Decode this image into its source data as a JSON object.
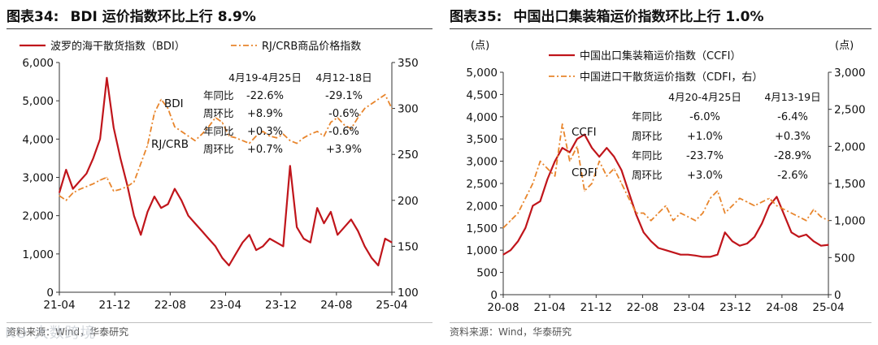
{
  "colors": {
    "red": "#c0151b",
    "orange": "#e8852c",
    "axis": "#333333",
    "text": "#111111"
  },
  "chart_data": [
    {
      "type": "line",
      "title_prefix": "图表34:",
      "title": "BDI 运价指数环比上行 8.9%",
      "source": "资料来源：Wind，华泰研究",
      "watermark": "K⊙ 大数跨境",
      "x_ticks": [
        "21-04",
        "21-12",
        "22-08",
        "23-04",
        "23-12",
        "24-08",
        "25-04"
      ],
      "y_left": {
        "ticks": [
          "6,000",
          "5,000",
          "4,000",
          "3,000",
          "2,000",
          "1,000",
          "0"
        ],
        "lim": [
          0,
          6000
        ]
      },
      "y_right": {
        "ticks": [
          "350",
          "300",
          "250",
          "200",
          "150",
          "100"
        ],
        "lim": [
          100,
          350
        ]
      },
      "legend": [
        {
          "label": "波罗的海干散货指数（BDI）",
          "style": "solid"
        },
        {
          "label": "RJ/CRB商品价格指数",
          "style": "dashdot"
        }
      ],
      "annotations": {
        "bdi_label": "BDI",
        "crb_label": "RJ/CRB",
        "col1": "4月19-4月25日",
        "col2": "4月12-18日",
        "rows": [
          {
            "label": "年同比",
            "v1": "-22.6%",
            "v2": "-29.1%"
          },
          {
            "label": "周环比",
            "v1": "+8.9%",
            "v2": "-0.6%"
          },
          {
            "label": "年同比",
            "v1": "+0.3%",
            "v2": "-0.6%"
          },
          {
            "label": "周环比",
            "v1": "+0.7%",
            "v2": "+3.9%"
          }
        ]
      },
      "series": [
        {
          "name": "波罗的海干散货指数（BDI）",
          "axis": "left",
          "x": [
            0,
            1,
            2,
            3,
            4,
            5,
            6,
            7,
            8,
            9,
            10,
            11,
            12,
            13,
            14,
            15,
            16,
            17,
            18,
            19,
            20,
            21,
            22,
            23,
            24,
            25,
            26,
            27,
            28,
            29,
            30,
            31,
            32,
            33,
            34,
            35,
            36,
            37,
            38,
            39,
            40,
            41,
            42,
            43,
            44,
            45,
            46,
            47,
            48,
            49
          ],
          "values": [
            2600,
            3200,
            2700,
            2900,
            3100,
            3500,
            4000,
            5600,
            4300,
            3500,
            2800,
            2000,
            1500,
            2100,
            2500,
            2200,
            2300,
            2700,
            2400,
            2000,
            1800,
            1600,
            1400,
            1200,
            900,
            700,
            1000,
            1300,
            1500,
            1100,
            1200,
            1400,
            1300,
            1200,
            3300,
            1700,
            1400,
            1300,
            2200,
            1800,
            2100,
            1500,
            1700,
            1900,
            1600,
            1200,
            900,
            700,
            1400,
            1300
          ]
        },
        {
          "name": "RJ/CRB商品价格指数",
          "axis": "right",
          "x": [
            0,
            1,
            2,
            3,
            4,
            5,
            6,
            7,
            8,
            9,
            10,
            11,
            12,
            13,
            14,
            15,
            16,
            17,
            18,
            19,
            20,
            21,
            22,
            23,
            24,
            25,
            26,
            27,
            28,
            29,
            30,
            31,
            32,
            33,
            34,
            35,
            36,
            37,
            38,
            39,
            40,
            41,
            42,
            43,
            44,
            45,
            46,
            47,
            48,
            49
          ],
          "values": [
            205,
            200,
            208,
            212,
            215,
            218,
            222,
            225,
            210,
            212,
            215,
            220,
            240,
            260,
            295,
            310,
            300,
            280,
            275,
            270,
            265,
            272,
            280,
            290,
            285,
            270,
            268,
            265,
            262,
            270,
            275,
            270,
            268,
            272,
            265,
            262,
            268,
            272,
            275,
            270,
            285,
            290,
            282,
            278,
            290,
            300,
            305,
            310,
            315,
            300
          ]
        }
      ]
    },
    {
      "type": "line",
      "title_prefix": "图表35:",
      "title": "中国出口集装箱运价指数环比上行 1.0%",
      "source": "资料来源：Wind，华泰研究",
      "unit_left": "(点)",
      "unit_right": "(点)",
      "x_ticks": [
        "20-08",
        "21-04",
        "21-12",
        "22-08",
        "23-04",
        "23-12",
        "24-08",
        "25-04"
      ],
      "y_left": {
        "ticks": [
          "5,000",
          "4,500",
          "4,000",
          "3,500",
          "3,000",
          "2,500",
          "2,000",
          "1,500",
          "1,000",
          "500",
          "0"
        ],
        "lim": [
          0,
          5000
        ]
      },
      "y_right": {
        "ticks": [
          "3,000",
          "2,500",
          "2,000",
          "1,500",
          "1,000",
          "500",
          "0"
        ],
        "lim": [
          0,
          3000
        ]
      },
      "legend": [
        {
          "label": "中国出口集装箱运价指数（CCFI）",
          "style": "solid"
        },
        {
          "label": "中国进口干散货运价指数（CDFI，右）",
          "style": "dashdot"
        }
      ],
      "annotations": {
        "ccfi_label": "CCFI",
        "cdfi_label": "CDFI",
        "col1": "4月20-4月25日",
        "col2": "4月13-19日",
        "rows": [
          {
            "label": "年同比",
            "v1": "-6.0%",
            "v2": "-6.4%"
          },
          {
            "label": "周环比",
            "v1": "+1.0%",
            "v2": "+0.3%"
          },
          {
            "label": "年同比",
            "v1": "-23.7%",
            "v2": "-28.9%"
          },
          {
            "label": "周环比",
            "v1": "+3.0%",
            "v2": "-2.6%"
          }
        ]
      },
      "series": [
        {
          "name": "中国出口集装箱运价指数（CCFI）",
          "axis": "left",
          "x": [
            0,
            1,
            2,
            3,
            4,
            5,
            6,
            7,
            8,
            9,
            10,
            11,
            12,
            13,
            14,
            15,
            16,
            17,
            18,
            19,
            20,
            21,
            22,
            23,
            24,
            25,
            26,
            27,
            28,
            29,
            30,
            31,
            32,
            33,
            34,
            35,
            36,
            37,
            38,
            39,
            40,
            41,
            42,
            43,
            44
          ],
          "values": [
            900,
            1000,
            1200,
            1500,
            2000,
            2100,
            2600,
            3000,
            3300,
            3200,
            3500,
            3600,
            3300,
            3100,
            3300,
            3100,
            2800,
            2300,
            1800,
            1400,
            1200,
            1050,
            1000,
            950,
            900,
            900,
            880,
            850,
            850,
            900,
            1400,
            1200,
            1100,
            1150,
            1300,
            1600,
            2000,
            2200,
            1800,
            1400,
            1300,
            1350,
            1200,
            1100,
            1120
          ]
        },
        {
          "name": "中国进口干散货运价指数（CDFI，右）",
          "axis": "right",
          "x": [
            0,
            1,
            2,
            3,
            4,
            5,
            6,
            7,
            8,
            9,
            10,
            11,
            12,
            13,
            14,
            15,
            16,
            17,
            18,
            19,
            20,
            21,
            22,
            23,
            24,
            25,
            26,
            27,
            28,
            29,
            30,
            31,
            32,
            33,
            34,
            35,
            36,
            37,
            38,
            39,
            40,
            41,
            42,
            43,
            44
          ],
          "values": [
            900,
            1000,
            1100,
            1300,
            1500,
            1800,
            1700,
            1600,
            2300,
            1800,
            2000,
            1400,
            1500,
            1800,
            1600,
            1700,
            1500,
            1300,
            1100,
            1100,
            1000,
            1100,
            1200,
            1000,
            1100,
            1050,
            1000,
            1100,
            1300,
            1400,
            1100,
            1200,
            1300,
            1250,
            1200,
            1250,
            1300,
            1200,
            1150,
            1100,
            1050,
            1000,
            1150,
            1050,
            1000
          ]
        }
      ]
    }
  ]
}
